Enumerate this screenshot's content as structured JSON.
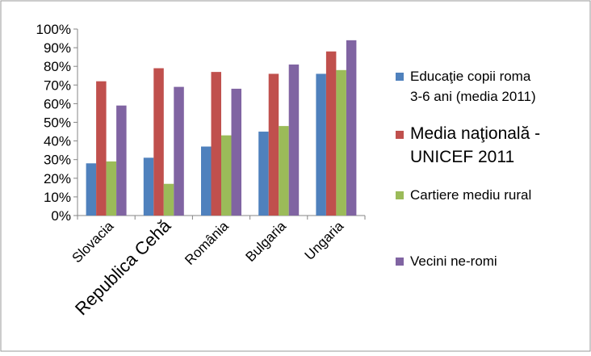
{
  "chart_data": {
    "type": "bar",
    "categories": [
      "Slovacia",
      "Republica Cehă",
      "România",
      "Bulgaria",
      "Ungaria"
    ],
    "series": [
      {
        "name": "Educaţie copii roma 3-6 ani (media 2011)",
        "name_lines": [
          "Educaţie copii roma",
          "3-6 ani (media 2011)"
        ],
        "color": "#4f81bd",
        "values": [
          28,
          31,
          37,
          45,
          76
        ]
      },
      {
        "name": "Media naţională - UNICEF 2011",
        "name_lines": [
          "Media naţională -",
          "UNICEF 2011"
        ],
        "color": "#c0504d",
        "values": [
          72,
          79,
          77,
          76,
          88
        ]
      },
      {
        "name": "Cartiere mediu rural",
        "name_lines": [
          "Cartiere mediu rural"
        ],
        "color": "#9bbb59",
        "values": [
          29,
          17,
          43,
          48,
          78
        ]
      },
      {
        "name": "Vecini ne-romi",
        "name_lines": [
          "Vecini ne-romi"
        ],
        "color": "#8064a2",
        "values": [
          59,
          69,
          68,
          81,
          94
        ]
      }
    ],
    "ylim": [
      0,
      100
    ],
    "yticks": [
      "0%",
      "10%",
      "20%",
      "30%",
      "40%",
      "50%",
      "60%",
      "70%",
      "80%",
      "90%",
      "100%"
    ],
    "grid": false,
    "legend": "right"
  }
}
